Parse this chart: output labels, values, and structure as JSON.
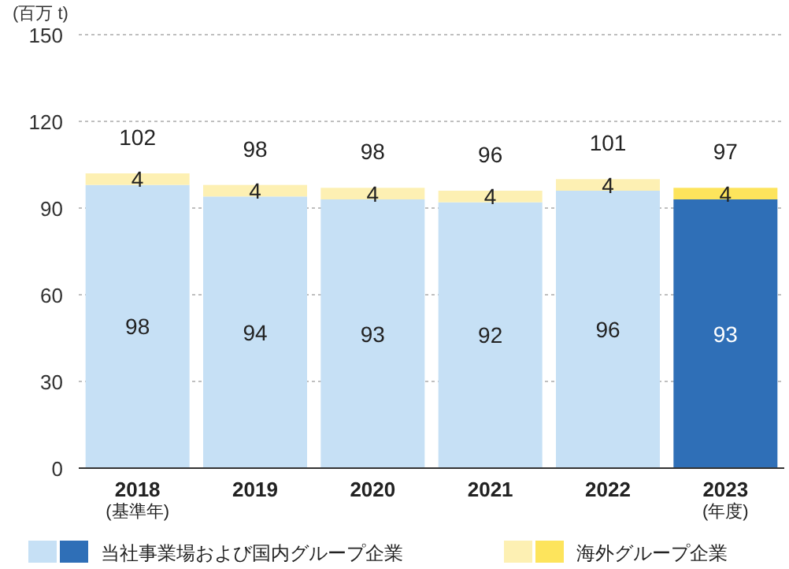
{
  "chart_data": {
    "type": "bar",
    "stacked": true,
    "ylabel": "(百万 t)",
    "categories": [
      "2018\n(基準年)",
      "2019",
      "2020",
      "2021",
      "2022",
      "2023\n(年度)"
    ],
    "series": [
      {
        "name": "当社事業場および国内グループ企業",
        "colors": [
          "#c6e0f5",
          "#c6e0f5",
          "#c6e0f5",
          "#c6e0f5",
          "#c6e0f5",
          "#2f6fb7"
        ],
        "values": [
          98,
          94,
          93,
          92,
          96,
          93
        ]
      },
      {
        "name": "海外グループ企業",
        "colors": [
          "#fdf0b3",
          "#fdf0b3",
          "#fdf0b3",
          "#fdf0b3",
          "#fdf0b3",
          "#fde45c"
        ],
        "values": [
          4,
          4,
          4,
          4,
          4,
          4
        ]
      }
    ],
    "totals": [
      "102",
      "98",
      "98",
      "96",
      "101",
      "97"
    ],
    "ylim": [
      0,
      150
    ],
    "yticks": [
      0,
      30,
      60,
      90,
      120,
      150
    ],
    "grid": "y",
    "data_labels": true,
    "legend": "bottom"
  }
}
